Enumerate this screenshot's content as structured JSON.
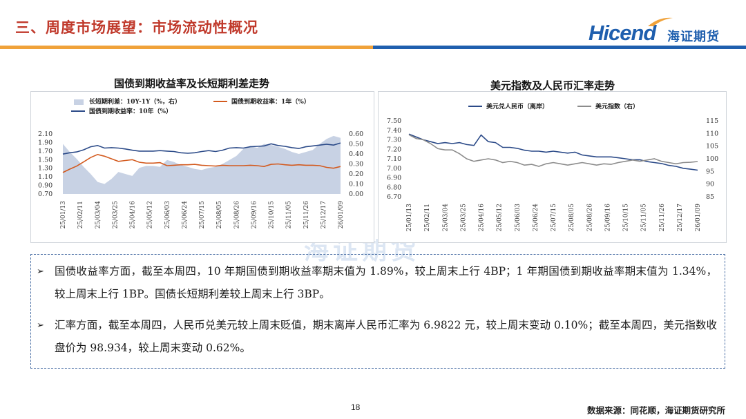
{
  "header": {
    "title": "三、周度市场展望：市场流动性概况",
    "logo_en": "Hicend",
    "logo_cn": "海证期货",
    "colors": {
      "title": "#c0392b",
      "bar_orange": "#f0a23a",
      "bar_blue": "#1f5fae"
    }
  },
  "watermark": "海证期货",
  "notes": [
    {
      "text": "国债收益率方面，截至本周四，10 年期国债到期收益率期末值为 1.89%，较上周末上行 4BP；1 年期国债到期收益率期末值为 1.34%，较上周末上行 1BP。国债长短期利差较上周末上行 3BP。"
    },
    {
      "text": "汇率方面，截至本周四，人民币兑美元较上周末贬值，期末离岸人民币汇率为 6.9822 元，较上周末变动 0.10%；截至本周四，美元指数收盘价为 98.934，较上周末变动 0.62%。"
    }
  ],
  "footer": {
    "page_number": "18",
    "source": "数据来源：同花顺，海证期货研究所"
  },
  "chart_data": [
    {
      "type": "line",
      "title": "国债到期收益率及长短期利差走势",
      "x_tick_labels": [
        "25/01/13",
        "25/02/11",
        "25/03/04",
        "25/03/25",
        "25/04/16",
        "25/05/12",
        "25/06/03",
        "25/06/24",
        "25/07/15",
        "25/08/05",
        "25/08/26",
        "25/09/16",
        "25/10/15",
        "25/11/05",
        "25/11/26",
        "25/12/17",
        "26/01/09"
      ],
      "y_left": {
        "ticks": [
          "2.10",
          "1.90",
          "1.70",
          "1.50",
          "1.30",
          "1.10",
          "0.90",
          "0.70"
        ],
        "range": [
          0.7,
          2.1
        ]
      },
      "y_right": {
        "ticks": [
          "0.60",
          "0.50",
          "0.40",
          "0.30",
          "0.20",
          "0.10",
          "0.00"
        ],
        "range": [
          0.0,
          0.6
        ]
      },
      "series": [
        {
          "name": "长短期利差：10Y-1Y（%，右）",
          "kind": "area",
          "axis": "right",
          "color": "#c8d2e4",
          "values": [
            0.5,
            0.42,
            0.35,
            0.27,
            0.2,
            0.12,
            0.1,
            0.15,
            0.22,
            0.2,
            0.18,
            0.26,
            0.28,
            0.28,
            0.27,
            0.34,
            0.32,
            0.29,
            0.27,
            0.25,
            0.24,
            0.26,
            0.27,
            0.3,
            0.34,
            0.38,
            0.45,
            0.48,
            0.46,
            0.5,
            0.49,
            0.47,
            0.45,
            0.42,
            0.4,
            0.42,
            0.44,
            0.5,
            0.55,
            0.58,
            0.56
          ]
        },
        {
          "name": "国债到期收益率：1年（%）",
          "kind": "line",
          "axis": "left",
          "color": "#d35a1e",
          "values": [
            1.2,
            1.28,
            1.35,
            1.45,
            1.55,
            1.62,
            1.58,
            1.52,
            1.46,
            1.48,
            1.5,
            1.44,
            1.42,
            1.42,
            1.43,
            1.36,
            1.37,
            1.38,
            1.38,
            1.39,
            1.37,
            1.36,
            1.35,
            1.37,
            1.36,
            1.36,
            1.36,
            1.37,
            1.36,
            1.34,
            1.39,
            1.4,
            1.38,
            1.37,
            1.38,
            1.37,
            1.37,
            1.36,
            1.32,
            1.3,
            1.34
          ]
        },
        {
          "name": "国债到期收益率：10年（%）",
          "kind": "line",
          "axis": "left",
          "color": "#2b4a88",
          "values": [
            1.63,
            1.66,
            1.68,
            1.73,
            1.8,
            1.83,
            1.77,
            1.78,
            1.77,
            1.75,
            1.72,
            1.7,
            1.7,
            1.7,
            1.71,
            1.7,
            1.69,
            1.66,
            1.65,
            1.66,
            1.69,
            1.71,
            1.69,
            1.72,
            1.77,
            1.78,
            1.77,
            1.8,
            1.81,
            1.82,
            1.87,
            1.83,
            1.81,
            1.78,
            1.76,
            1.8,
            1.82,
            1.84,
            1.86,
            1.84,
            1.89
          ]
        }
      ]
    },
    {
      "type": "line",
      "title": "美元指数及人民币汇率走势",
      "x_tick_labels": [
        "25/01/13",
        "25/02/11",
        "25/03/04",
        "25/03/25",
        "25/04/16",
        "25/05/12",
        "25/06/03",
        "25/06/24",
        "25/07/15",
        "25/08/05",
        "25/08/26",
        "25/09/16",
        "25/10/15",
        "25/11/05",
        "25/11/26",
        "25/12/17",
        "26/01/09"
      ],
      "y_left": {
        "ticks": [
          "7.50",
          "7.40",
          "7.30",
          "7.20",
          "7.10",
          "7.00",
          "6.90",
          "6.80",
          "6.70"
        ],
        "range": [
          6.7,
          7.5
        ]
      },
      "y_right": {
        "ticks": [
          "115",
          "110",
          "105",
          "100",
          "95",
          "90",
          "85"
        ],
        "range": [
          85,
          115
        ]
      },
      "series": [
        {
          "name": "美元兑人民币（离岸）",
          "axis": "left",
          "color": "#2b4a88",
          "values": [
            7.36,
            7.33,
            7.3,
            7.28,
            7.26,
            7.27,
            7.26,
            7.27,
            7.25,
            7.24,
            7.35,
            7.28,
            7.27,
            7.22,
            7.22,
            7.21,
            7.19,
            7.18,
            7.18,
            7.17,
            7.18,
            7.17,
            7.16,
            7.17,
            7.14,
            7.13,
            7.12,
            7.12,
            7.12,
            7.11,
            7.1,
            7.09,
            7.09,
            7.07,
            7.06,
            7.05,
            7.03,
            7.02,
            7.0,
            6.99,
            6.98
          ]
        },
        {
          "name": "美元指数（右）",
          "axis": "right",
          "color": "#8c8c8c",
          "values": [
            109.5,
            108.0,
            107.5,
            106.0,
            104.0,
            103.5,
            103.5,
            102.0,
            100.0,
            99.0,
            99.5,
            100.0,
            99.5,
            98.5,
            99.0,
            98.5,
            97.5,
            97.8,
            97.0,
            98.0,
            98.5,
            98.0,
            97.5,
            98.0,
            98.5,
            98.0,
            97.5,
            98.0,
            97.8,
            98.5,
            99.0,
            99.5,
            99.0,
            99.5,
            100.0,
            99.0,
            98.5,
            98.0,
            98.5,
            98.6,
            98.9
          ]
        }
      ]
    }
  ]
}
